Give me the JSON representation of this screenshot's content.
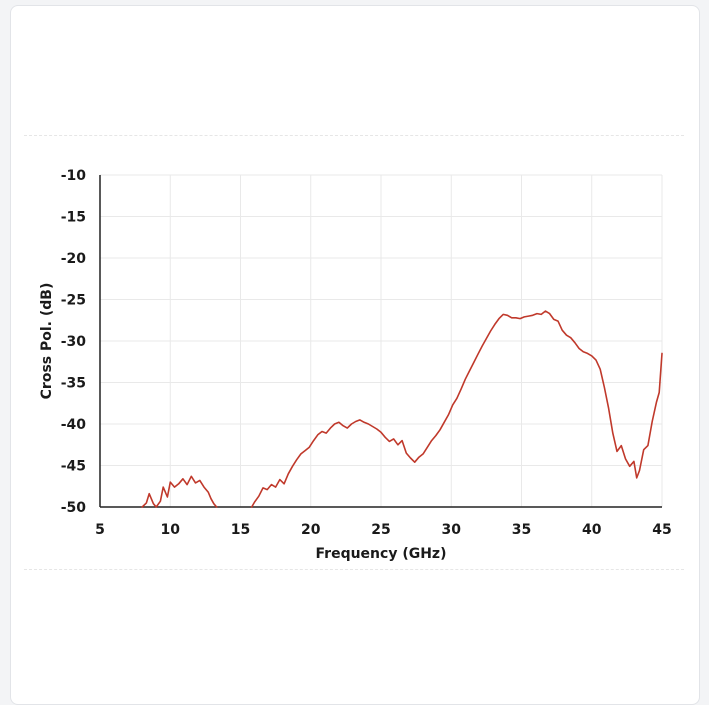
{
  "colors": {
    "line": "#c0392b",
    "grid": "#e9e9e9",
    "axis": "#222222"
  },
  "chart_data": {
    "type": "line",
    "title": "",
    "xlabel": "Frequency  (GHz)",
    "ylabel": "Cross Pol. (dB)",
    "xlim": [
      5,
      45
    ],
    "ylim": [
      -50,
      -10
    ],
    "xticks": [
      5,
      10,
      15,
      20,
      25,
      30,
      35,
      40,
      45
    ],
    "yticks": [
      -10,
      -15,
      -20,
      -25,
      -30,
      -35,
      -40,
      -45,
      -50
    ],
    "grid": true,
    "series": [
      {
        "x": [
          8.0,
          8.3,
          8.5,
          8.8,
          9.0,
          9.3,
          9.5,
          9.8,
          10.0,
          10.3,
          10.6,
          10.9,
          11.2,
          11.5,
          11.8,
          12.1,
          12.4,
          12.7,
          12.9,
          13.1,
          13.3
        ],
        "y": [
          -50,
          -49.5,
          -48.4,
          -49.6,
          -50,
          -49.3,
          -47.6,
          -48.8,
          -47.0,
          -47.6,
          -47.2,
          -46.6,
          -47.3,
          -46.3,
          -47.1,
          -46.8,
          -47.6,
          -48.2,
          -49.0,
          -49.6,
          -50
        ]
      },
      {
        "x": [
          15.8,
          16.0,
          16.3,
          16.6,
          16.9,
          17.2,
          17.5,
          17.8,
          18.1,
          18.4,
          18.7,
          19.0,
          19.3,
          19.6,
          19.9,
          20.2,
          20.5,
          20.8,
          21.1,
          21.4,
          21.7,
          22.0,
          22.3,
          22.6,
          22.9,
          23.2,
          23.5,
          23.8,
          24.1,
          24.4,
          24.7,
          25.0,
          25.3,
          25.6,
          25.9,
          26.2,
          26.5,
          26.8,
          27.1,
          27.4,
          27.7,
          28.0,
          28.3,
          28.6,
          28.9,
          29.2,
          29.5,
          29.8,
          30.1,
          30.4,
          30.7,
          31.0,
          31.3,
          31.6,
          31.9,
          32.2,
          32.5,
          32.8,
          33.1,
          33.4,
          33.7,
          34.0,
          34.3,
          34.6,
          34.9,
          35.2,
          35.5,
          35.8,
          36.1,
          36.4,
          36.7,
          37.0,
          37.3,
          37.6,
          37.9,
          38.2,
          38.5,
          38.8,
          39.1,
          39.4,
          39.7,
          40.0,
          40.3,
          40.6,
          40.9,
          41.2,
          41.5,
          41.8,
          42.1,
          42.4,
          42.7,
          43.0,
          43.2,
          43.4,
          43.7,
          44.0,
          44.3,
          44.6,
          44.8,
          45.0
        ],
        "y": [
          -50,
          -49.4,
          -48.7,
          -47.7,
          -47.9,
          -47.3,
          -47.6,
          -46.7,
          -47.2,
          -46.0,
          -45.1,
          -44.3,
          -43.6,
          -43.2,
          -42.8,
          -42.0,
          -41.3,
          -40.9,
          -41.1,
          -40.5,
          -40.0,
          -39.8,
          -40.2,
          -40.5,
          -40.0,
          -39.7,
          -39.5,
          -39.8,
          -40.0,
          -40.3,
          -40.6,
          -41.0,
          -41.6,
          -42.1,
          -41.8,
          -42.5,
          -42.0,
          -43.5,
          -44.1,
          -44.6,
          -44.0,
          -43.6,
          -42.8,
          -42.0,
          -41.4,
          -40.7,
          -39.8,
          -38.9,
          -37.7,
          -36.9,
          -35.8,
          -34.6,
          -33.6,
          -32.6,
          -31.6,
          -30.6,
          -29.7,
          -28.8,
          -28.0,
          -27.3,
          -26.8,
          -26.9,
          -27.2,
          -27.2,
          -27.3,
          -27.1,
          -27.0,
          -26.9,
          -26.7,
          -26.8,
          -26.4,
          -26.7,
          -27.4,
          -27.6,
          -28.7,
          -29.3,
          -29.6,
          -30.2,
          -30.9,
          -31.3,
          -31.5,
          -31.8,
          -32.3,
          -33.4,
          -35.6,
          -38.1,
          -41.1,
          -43.3,
          -42.6,
          -44.2,
          -45.1,
          -44.5,
          -46.5,
          -45.6,
          -43.1,
          -42.6,
          -39.7,
          -37.4,
          -36.2,
          -31.5
        ]
      }
    ]
  }
}
